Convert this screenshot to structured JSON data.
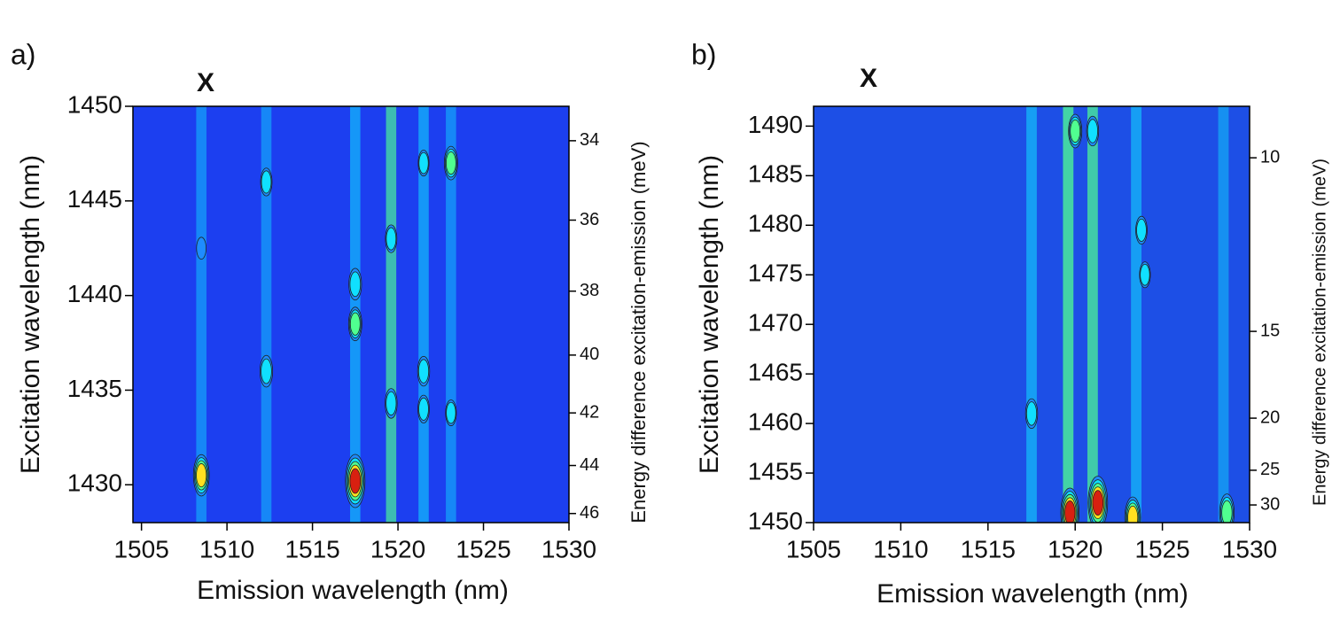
{
  "chart_data": [
    {
      "type": "contour",
      "panel_label": "a)",
      "annotation": "X",
      "xlabel": "Emission wavelength (nm)",
      "ylabel": "Excitation wavelength (nm)",
      "y2label": "Energy difference excitation-emission (meV)",
      "y2color": "#1a1a7a",
      "xlim": [
        1504.5,
        1530
      ],
      "xticks": [
        1505,
        1510,
        1515,
        1520,
        1525,
        1530
      ],
      "ylim": [
        1428,
        1450
      ],
      "yticks": [
        1430,
        1435,
        1440,
        1445,
        1450
      ],
      "y2lim": [
        46.4,
        33.2
      ],
      "y2ticks": [
        34,
        36,
        38,
        40,
        42,
        44,
        46
      ],
      "y2scale": "reciprocal",
      "background": "#1c3ff0",
      "colormap": [
        "#1c3ff0",
        "#1e8cff",
        "#10e0ff",
        "#50ff90",
        "#ffe020",
        "#d82010"
      ],
      "streaks": {
        "x": [
          1508.5,
          1512.3,
          1517.5,
          1519.6,
          1521.5,
          1523.1
        ],
        "values": [
          0.1,
          0.1,
          0.2,
          0.3,
          0.2,
          0.1
        ]
      },
      "peaks": {
        "x": [
          1508.5,
          1517.5,
          1512.3,
          1512.3,
          1517.5,
          1517.5,
          1519.6,
          1519.6,
          1521.5,
          1521.5,
          1521.5,
          1523.1,
          1523.1,
          1508.5
        ],
        "y": [
          1430.5,
          1430.2,
          1436,
          1446,
          1438.5,
          1440.6,
          1434.3,
          1443,
          1436,
          1434,
          1447,
          1447,
          1433.8,
          1442.5
        ],
        "values": [
          0.7,
          1.0,
          0.45,
          0.35,
          0.5,
          0.45,
          0.4,
          0.35,
          0.4,
          0.35,
          0.3,
          0.5,
          0.3,
          0.2
        ]
      }
    },
    {
      "type": "contour",
      "panel_label": "b)",
      "annotation": "X",
      "xlabel": "Emission wavelength (nm)",
      "ylabel": "Excitation wavelength (nm)",
      "y2label": "Energy difference excitation-emission (meV)",
      "y2color": "#111111",
      "xlim": [
        1505,
        1530
      ],
      "xticks": [
        1505,
        1510,
        1515,
        1520,
        1525,
        1530
      ],
      "ylim": [
        1450,
        1492
      ],
      "yticks": [
        1450,
        1455,
        1460,
        1465,
        1470,
        1475,
        1480,
        1485,
        1490
      ],
      "y2lim": [
        33.4,
        9.1
      ],
      "y2ticks": [
        10,
        15,
        20,
        25,
        30
      ],
      "y2scale": "reciprocal",
      "background": "#1d4fe6",
      "colormap": [
        "#1d4fe6",
        "#1e8cff",
        "#10e0ff",
        "#50ff90",
        "#ffe020",
        "#d82010"
      ],
      "streaks": {
        "x": [
          1517.5,
          1519.6,
          1521,
          1523.5,
          1528.5
        ],
        "values": [
          0.2,
          0.4,
          0.35,
          0.2,
          0.1
        ]
      },
      "peaks": {
        "x": [
          1519.7,
          1521.3,
          1523.3,
          1528.7,
          1517.5,
          1520,
          1521,
          1523.8,
          1524
        ],
        "y": [
          1451,
          1452,
          1450.5,
          1451,
          1461,
          1489.5,
          1489.5,
          1479.5,
          1475
        ],
        "values": [
          0.9,
          1.0,
          0.7,
          0.6,
          0.4,
          0.5,
          0.4,
          0.35,
          0.3
        ]
      }
    }
  ]
}
